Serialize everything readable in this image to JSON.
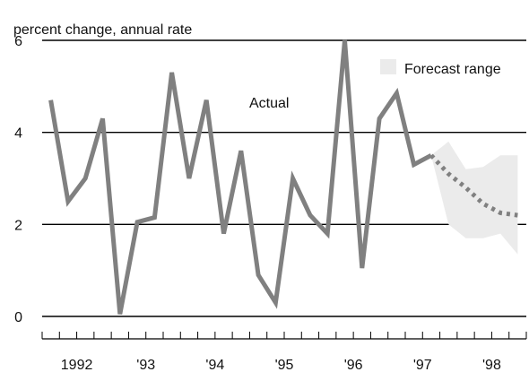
{
  "chart_data": {
    "type": "line",
    "title": "",
    "ylabel": "percent change, annual rate",
    "xlabel": "",
    "ylim": [
      0,
      6
    ],
    "yticks": [
      0,
      2,
      4,
      6
    ],
    "grid": "horizontal",
    "x_start_year": 1992,
    "x_end_year": 1999,
    "x_tick_labels": [
      "1992",
      "'93",
      "'94",
      "'95",
      "'96",
      "'97",
      "'98"
    ],
    "series": [
      {
        "name": "Actual",
        "style": "solid",
        "color": "#808080",
        "x": [
          "1992Q1",
          "1992Q2",
          "1992Q3",
          "1992Q4",
          "1993Q1",
          "1993Q2",
          "1993Q3",
          "1993Q4",
          "1994Q1",
          "1994Q2",
          "1994Q3",
          "1994Q4",
          "1995Q1",
          "1995Q2",
          "1995Q3",
          "1995Q4",
          "1996Q1",
          "1996Q2",
          "1996Q3",
          "1996Q4",
          "1997Q1",
          "1997Q2",
          "1997Q3"
        ],
        "values": [
          4.7,
          2.5,
          3.0,
          4.3,
          0.05,
          2.05,
          2.15,
          5.3,
          3.0,
          4.7,
          1.8,
          3.6,
          0.9,
          0.3,
          3.0,
          2.2,
          1.8,
          6.0,
          1.05,
          4.3,
          4.85,
          3.3,
          3.5
        ]
      },
      {
        "name": "",
        "style": "dotted",
        "color": "#808080",
        "x": [
          "1997Q3",
          "1997Q4",
          "1998Q1",
          "1998Q2",
          "1998Q3",
          "1998Q4"
        ],
        "values": [
          3.5,
          3.1,
          2.8,
          2.45,
          2.25,
          2.2
        ]
      }
    ],
    "forecast_range": {
      "label": "Forecast range",
      "color": "#ebebeb",
      "x": [
        "1997Q3",
        "1997Q4",
        "1998Q1",
        "1998Q2",
        "1998Q3",
        "1998Q4"
      ],
      "upper": [
        3.5,
        3.8,
        3.2,
        3.25,
        3.5,
        3.5
      ],
      "lower": [
        3.5,
        2.0,
        1.7,
        1.7,
        1.8,
        1.35
      ]
    },
    "annotations": [
      {
        "text": "Actual",
        "series": 0
      },
      {
        "text": "Forecast range",
        "legend_for": "forecast_range"
      }
    ]
  }
}
